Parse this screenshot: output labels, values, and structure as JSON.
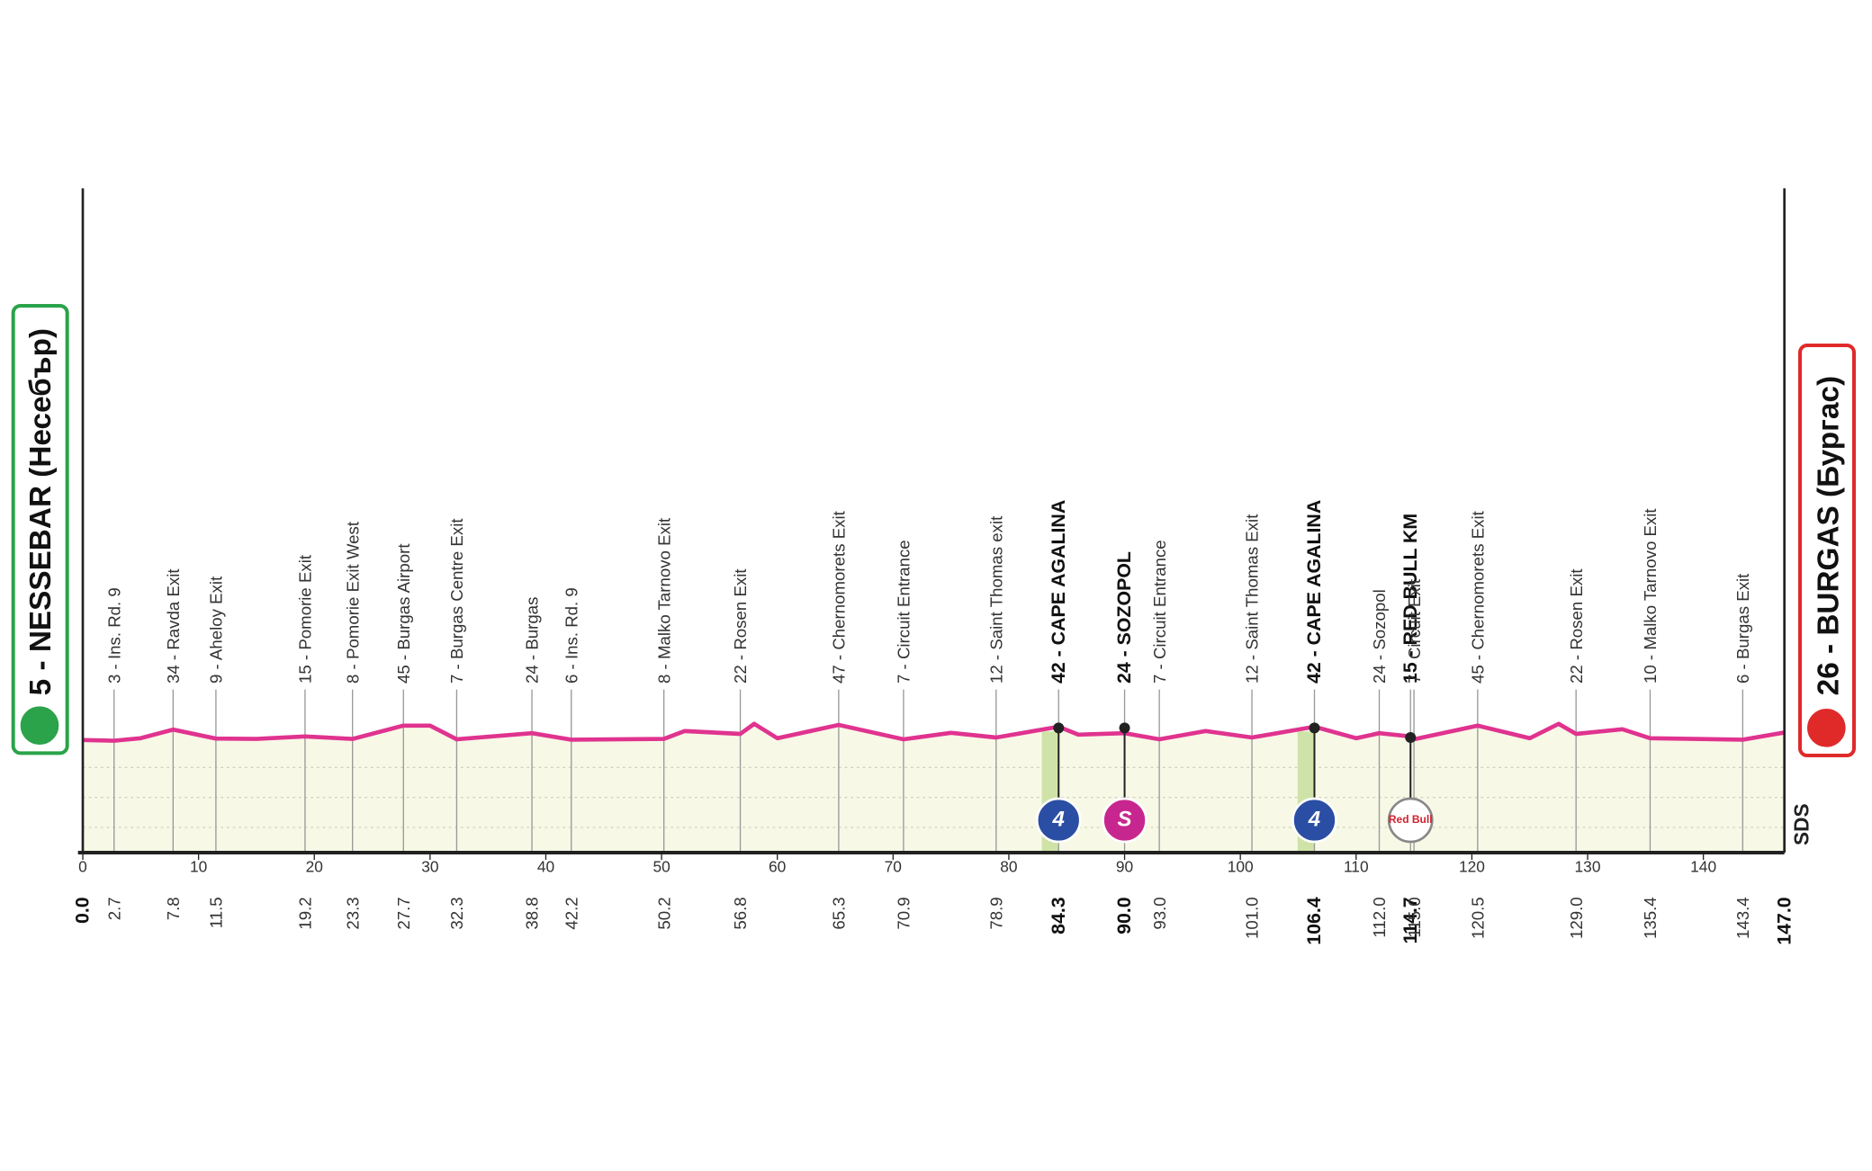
{
  "chart_data": {
    "type": "profile",
    "start": "5 - NESSEBAR (Несебър)",
    "finish": "26 - BURGAS (Бургас)",
    "logo": "SDS",
    "xlim": [
      0,
      147
    ],
    "xticks": [
      0,
      10,
      20,
      30,
      40,
      50,
      60,
      70,
      80,
      90,
      100,
      110,
      120,
      130,
      140
    ],
    "ylim": [
      -308,
      1538
    ],
    "color": "#e0338f",
    "waypoints": [
      {
        "km": 0,
        "km_label": "0.0",
        "name": null,
        "bold": true
      },
      {
        "km": 2.7,
        "name": "3 - Ins. Rd. 9"
      },
      {
        "km": 7.8,
        "name": "34 - Ravda Exit"
      },
      {
        "km": 11.5,
        "name": "9 - Aheloy Exit"
      },
      {
        "km": 19.2,
        "name": "15 - Pomorie Exit"
      },
      {
        "km": 23.3,
        "name": "8 - Pomorie Exit West"
      },
      {
        "km": 27.7,
        "name": "45 - Burgas Airport"
      },
      {
        "km": 32.3,
        "name": "7 - Burgas Centre Exit"
      },
      {
        "km": 38.8,
        "name": "24 - Burgas"
      },
      {
        "km": 42.2,
        "name": "6 - Ins. Rd. 9"
      },
      {
        "km": 50.2,
        "name": "8 - Malko Tarnovo Exit"
      },
      {
        "km": 56.8,
        "name": "22 - Rosen Exit"
      },
      {
        "km": 65.3,
        "name": "47 - Chernomorets Exit"
      },
      {
        "km": 70.9,
        "name": "7 - Circuit Entrance"
      },
      {
        "km": 78.9,
        "name": "12 - Saint Thomas exit"
      },
      {
        "km": 84.3,
        "name": "42 - CAPE AGALINA",
        "bold": true
      },
      {
        "km": 90,
        "km_label": "90.0",
        "name": "24 - SOZOPOL",
        "bold": true
      },
      {
        "km": 93,
        "km_label": "93.0",
        "name": "7 - Circuit Entrance"
      },
      {
        "km": 101,
        "km_label": "101.0",
        "name": "12 - Saint Thomas Exit"
      },
      {
        "km": 106.4,
        "name": "42 - CAPE AGALINA",
        "bold": true
      },
      {
        "km": 112,
        "km_label": "112.0",
        "name": "24 - Sozopol"
      },
      {
        "km": 114.7,
        "name": "15 - RED BULL KM",
        "bold": true
      },
      {
        "km": 115,
        "km_label": "115.0",
        "name": "7 - Circuit Exit"
      },
      {
        "km": 120.5,
        "name": "45 - Chernomorets Exit"
      },
      {
        "km": 129,
        "km_label": "129.0",
        "name": "22 - Rosen Exit"
      },
      {
        "km": 135.4,
        "name": "10 - Malko Tarnovo Exit"
      },
      {
        "km": 143.4,
        "name": "6 - Burgas Exit"
      },
      {
        "km": 147,
        "km_label": "147.0",
        "name": null,
        "bold": true
      }
    ],
    "profile": {
      "x": [
        0,
        2.7,
        5,
        7.8,
        11.5,
        15,
        19.2,
        23.3,
        27.7,
        30,
        32.3,
        38.8,
        42.2,
        50.2,
        52,
        56.8,
        58,
        60,
        65.3,
        70.9,
        75,
        78.9,
        84.3,
        86,
        90,
        93,
        97,
        101,
        106.4,
        110,
        112,
        114.7,
        115,
        120.5,
        125,
        127.5,
        129,
        133,
        135.4,
        143.4,
        147
      ],
      "values": [
        5,
        3,
        10,
        34,
        9,
        8,
        15,
        8,
        45,
        45,
        7,
        24,
        6,
        8,
        30,
        22,
        50,
        10,
        47,
        7,
        25,
        12,
        42,
        20,
        24,
        7,
        30,
        12,
        42,
        10,
        24,
        15,
        7,
        45,
        10,
        50,
        22,
        35,
        10,
        6,
        26
      ]
    },
    "climbs": [
      {
        "km": 84.3,
        "label": "4",
        "color": "#2a4ea3"
      },
      {
        "km": 90,
        "label": "S",
        "color": "#c8268f"
      },
      {
        "km": 106.4,
        "label": "4",
        "color": "#2a4ea3"
      },
      {
        "km": 114.7,
        "label": "Red Bull",
        "color": "#ffffff"
      }
    ]
  }
}
